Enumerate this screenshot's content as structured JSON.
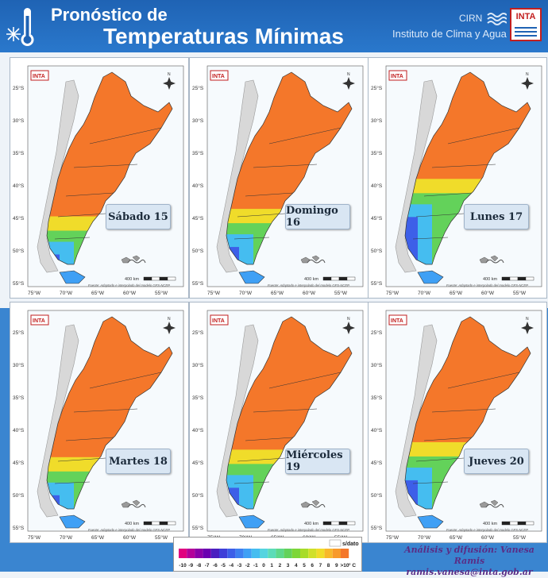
{
  "header": {
    "title_line1": "Pronóstico de",
    "title_line2": "Temperaturas Mínimas",
    "org_short": "CIRN",
    "org_long": "Instituto de Clima y Agua",
    "logo_text": "INTA"
  },
  "map_common": {
    "lat_labels": [
      "25°S",
      "30°S",
      "35°S",
      "40°S",
      "45°S",
      "50°S",
      "55°S"
    ],
    "lon_labels": [
      "75°W",
      "70°W",
      "65°W",
      "60°W",
      "55°W"
    ],
    "scale_label": "400 km",
    "source_text": "Fuente: Adaptado e interpolado del modelo GFS-NCEP",
    "logo_text": "INTA",
    "north_label": "N"
  },
  "panels": [
    {
      "day": "Sábado 15",
      "warm_fraction": 0.82
    },
    {
      "day": "Domingo 16",
      "warm_fraction": 0.78
    },
    {
      "day": "Lunes 17",
      "warm_fraction": 0.62
    },
    {
      "day": "Martes 18",
      "warm_fraction": 0.8
    },
    {
      "day": "Miércoles 19",
      "warm_fraction": 0.76
    },
    {
      "day": "Jueves 20",
      "warm_fraction": 0.72
    }
  ],
  "legend": {
    "no_data_label": "s/dato",
    "values": [
      "-10",
      "-9",
      "-8",
      "-7",
      "-6",
      "-5",
      "-4",
      "-3",
      "-2",
      "-1",
      "0",
      "1",
      "2",
      "3",
      "4",
      "5",
      "6",
      "7",
      "8",
      "9",
      ">10"
    ],
    "unit": "° C",
    "colors": [
      "#e1007f",
      "#b4009a",
      "#8a00a8",
      "#6a00b0",
      "#4b1fc0",
      "#3f3fd8",
      "#3d5fe8",
      "#3e80f0",
      "#3fa0f5",
      "#45bdf0",
      "#55d4e0",
      "#5cdcb8",
      "#5ed88a",
      "#63d25a",
      "#7cd638",
      "#a8dc2a",
      "#d0e02a",
      "#f0dc2a",
      "#f8b82a",
      "#f89a2a",
      "#f4772a"
    ]
  },
  "credit": {
    "line1": "Análisis y difusión: Vanesa Ramis",
    "line2": "ramis.vanesa@inta.gob.ar"
  }
}
